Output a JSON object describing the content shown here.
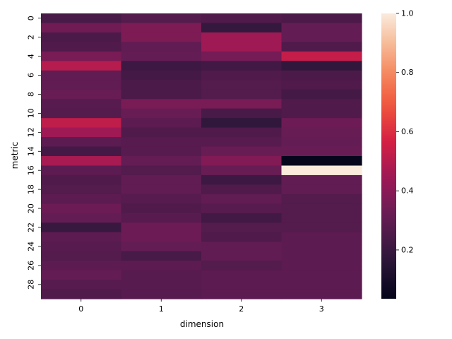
{
  "chart_data": {
    "type": "heatmap",
    "xlabel": "dimension",
    "ylabel": "metric",
    "x_categories": [
      "0",
      "1",
      "2",
      "3"
    ],
    "y_categories": [
      "0",
      "1",
      "2",
      "3",
      "4",
      "5",
      "6",
      "7",
      "8",
      "9",
      "10",
      "11",
      "12",
      "13",
      "14",
      "15",
      "16",
      "17",
      "18",
      "19",
      "20",
      "21",
      "22",
      "23",
      "24",
      "25",
      "26",
      "27",
      "28",
      "29"
    ],
    "y_tick_labels": [
      "0",
      "2",
      "4",
      "6",
      "8",
      "10",
      "12",
      "14",
      "16",
      "18",
      "20",
      "22",
      "24",
      "26",
      "28"
    ],
    "values": [
      [
        0.24,
        0.27,
        0.26,
        0.25
      ],
      [
        0.34,
        0.37,
        0.19,
        0.31
      ],
      [
        0.25,
        0.37,
        0.45,
        0.31
      ],
      [
        0.26,
        0.3,
        0.45,
        0.26
      ],
      [
        0.36,
        0.31,
        0.35,
        0.53
      ],
      [
        0.5,
        0.21,
        0.22,
        0.18
      ],
      [
        0.3,
        0.23,
        0.26,
        0.25
      ],
      [
        0.3,
        0.25,
        0.27,
        0.26
      ],
      [
        0.32,
        0.25,
        0.27,
        0.23
      ],
      [
        0.28,
        0.36,
        0.36,
        0.26
      ],
      [
        0.27,
        0.32,
        0.24,
        0.26
      ],
      [
        0.52,
        0.29,
        0.18,
        0.33
      ],
      [
        0.45,
        0.26,
        0.26,
        0.32
      ],
      [
        0.29,
        0.28,
        0.28,
        0.31
      ],
      [
        0.23,
        0.28,
        0.32,
        0.32
      ],
      [
        0.47,
        0.31,
        0.38,
        0.04
      ],
      [
        0.29,
        0.27,
        0.32,
        1.0
      ],
      [
        0.26,
        0.3,
        0.21,
        0.3
      ],
      [
        0.27,
        0.3,
        0.26,
        0.3
      ],
      [
        0.29,
        0.28,
        0.3,
        0.27
      ],
      [
        0.33,
        0.26,
        0.28,
        0.27
      ],
      [
        0.31,
        0.28,
        0.22,
        0.27
      ],
      [
        0.2,
        0.33,
        0.27,
        0.27
      ],
      [
        0.29,
        0.33,
        0.26,
        0.29
      ],
      [
        0.28,
        0.31,
        0.3,
        0.29
      ],
      [
        0.27,
        0.24,
        0.3,
        0.29
      ],
      [
        0.29,
        0.29,
        0.27,
        0.29
      ],
      [
        0.31,
        0.28,
        0.29,
        0.29
      ],
      [
        0.28,
        0.28,
        0.29,
        0.29
      ],
      [
        0.26,
        0.28,
        0.29,
        0.29
      ]
    ],
    "colorbar": {
      "ticks": [
        "0.2",
        "0.4",
        "0.6",
        "0.8",
        "1.0"
      ],
      "tick_values": [
        0.2,
        0.4,
        0.6,
        0.8,
        1.0
      ],
      "range": [
        0.035,
        1.0
      ],
      "colormap": "rocket"
    },
    "grid": false
  }
}
